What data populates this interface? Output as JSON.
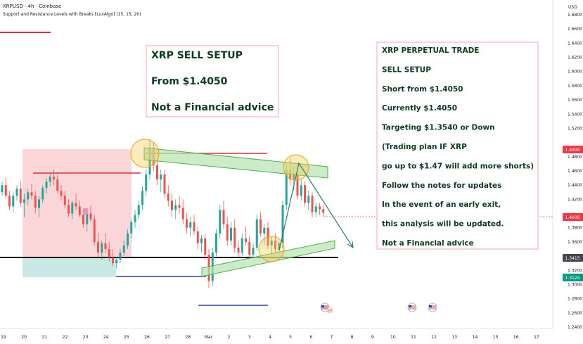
{
  "header": {
    "symbol_line": "XRPUSD · 4h · Coinbase",
    "indicator_line": "Support and Resistance Levels with Breaks [LuxAlgo] (15, 15, 20)"
  },
  "currency_label": "USD",
  "price_axis": {
    "ticks": [
      "1.6800",
      "1.6600",
      "1.6400",
      "1.6200",
      "1.6000",
      "1.5800",
      "1.5600",
      "1.5400",
      "1.5200",
      "1.4800",
      "1.4600",
      "1.4400",
      "1.4200",
      "1.3800",
      "1.3600",
      "1.3200",
      "1.3000",
      "1.2800",
      "1.2600",
      "1.2400"
    ],
    "badges": [
      {
        "label": "1.4998",
        "color": "#f23645"
      },
      {
        "label": "1.4006",
        "color": "#f23645"
      },
      {
        "label": "1.3415",
        "color": "#434651"
      },
      {
        "label": "1.3124",
        "color": "#089981"
      }
    ]
  },
  "time_axis": {
    "ticks": [
      "19",
      "20",
      "21",
      "22",
      "23",
      "24",
      "25",
      "26",
      "27",
      "28",
      "Mar",
      "2",
      "3",
      "4",
      "5",
      "6",
      "7",
      "8",
      "9",
      "10",
      "11",
      "12",
      "13",
      "14",
      "15",
      "16",
      "17"
    ]
  },
  "notes": {
    "left": [
      "XRP SELL SETUP",
      "From $1.4050",
      "Not a Financial advice"
    ],
    "right": [
      "XRP PERPETUAL TRADE",
      "SELL SETUP",
      "Short from $1.4050",
      "Currently $1.4050",
      "Targeting $1.3540 or Down",
      "(Trading plan IF XRP",
      "go up to $1.47 will add more shorts)",
      "Follow the notes for updates",
      "In the event of an early exit,",
      "this analysis will be updated.",
      "Not a Financial advice"
    ]
  },
  "colors": {
    "up": "#26a69a",
    "down": "#ef5350",
    "red_line": "#e03030",
    "support_line": "#000000",
    "blue_line": "#2b3fa8",
    "channel_fill": "#b7e4b0",
    "channel_stroke": "#4caf50",
    "note_border": "#f4a6a6",
    "arrow": "#2e7d6b",
    "circle": "#f5c542"
  },
  "chart_data": {
    "type": "candlestick",
    "symbol": "XRPUSD",
    "timeframe": "4h",
    "exchange": "Coinbase",
    "y_axis": {
      "label": "USD",
      "range": [
        1.23,
        1.7
      ]
    },
    "x_axis": {
      "range_dates": [
        "19 Feb",
        "17 Mar"
      ]
    },
    "last_price": 1.4006,
    "levels": {
      "resistance": 1.4998,
      "support": 1.3415,
      "lower_support": 1.3124
    },
    "ohlc": [
      [
        1.43,
        1.445,
        1.425,
        1.44
      ],
      [
        1.44,
        1.452,
        1.42,
        1.425
      ],
      [
        1.425,
        1.432,
        1.405,
        1.41
      ],
      [
        1.41,
        1.43,
        1.402,
        1.425
      ],
      [
        1.425,
        1.44,
        1.418,
        1.435
      ],
      [
        1.435,
        1.445,
        1.41,
        1.415
      ],
      [
        1.415,
        1.428,
        1.395,
        1.42
      ],
      [
        1.42,
        1.435,
        1.412,
        1.43
      ],
      [
        1.43,
        1.442,
        1.42,
        1.425
      ],
      [
        1.425,
        1.432,
        1.4,
        1.408
      ],
      [
        1.408,
        1.425,
        1.395,
        1.42
      ],
      [
        1.42,
        1.44,
        1.415,
        1.436
      ],
      [
        1.436,
        1.45,
        1.428,
        1.445
      ],
      [
        1.445,
        1.458,
        1.438,
        1.452
      ],
      [
        1.452,
        1.462,
        1.44,
        1.448
      ],
      [
        1.448,
        1.455,
        1.428,
        1.432
      ],
      [
        1.432,
        1.44,
        1.418,
        1.425
      ],
      [
        1.425,
        1.432,
        1.408,
        1.412
      ],
      [
        1.412,
        1.42,
        1.395,
        1.4
      ],
      [
        1.4,
        1.418,
        1.392,
        1.415
      ],
      [
        1.415,
        1.428,
        1.405,
        1.41
      ],
      [
        1.41,
        1.418,
        1.395,
        1.398
      ],
      [
        1.398,
        1.405,
        1.38,
        1.385
      ],
      [
        1.385,
        1.405,
        1.375,
        1.4
      ],
      [
        1.4,
        1.412,
        1.388,
        1.392
      ],
      [
        1.392,
        1.398,
        1.355,
        1.36
      ],
      [
        1.36,
        1.372,
        1.338,
        1.345
      ],
      [
        1.345,
        1.362,
        1.335,
        1.358
      ],
      [
        1.358,
        1.372,
        1.345,
        1.35
      ],
      [
        1.35,
        1.36,
        1.332,
        1.338
      ],
      [
        1.338,
        1.35,
        1.326,
        1.33
      ],
      [
        1.33,
        1.338,
        1.322,
        1.335
      ],
      [
        1.335,
        1.35,
        1.33,
        1.345
      ],
      [
        1.345,
        1.362,
        1.34,
        1.355
      ],
      [
        1.355,
        1.378,
        1.35,
        1.372
      ],
      [
        1.372,
        1.392,
        1.365,
        1.388
      ],
      [
        1.388,
        1.405,
        1.38,
        1.398
      ],
      [
        1.398,
        1.418,
        1.392,
        1.412
      ],
      [
        1.412,
        1.438,
        1.405,
        1.432
      ],
      [
        1.432,
        1.462,
        1.425,
        1.455
      ],
      [
        1.455,
        1.505,
        1.448,
        1.492
      ],
      [
        1.492,
        1.5,
        1.46,
        1.468
      ],
      [
        1.468,
        1.478,
        1.44,
        1.448
      ],
      [
        1.448,
        1.462,
        1.43,
        1.455
      ],
      [
        1.455,
        1.462,
        1.422,
        1.428
      ],
      [
        1.428,
        1.44,
        1.41,
        1.418
      ],
      [
        1.418,
        1.428,
        1.395,
        1.405
      ],
      [
        1.405,
        1.42,
        1.392,
        1.412
      ],
      [
        1.412,
        1.425,
        1.4,
        1.408
      ],
      [
        1.408,
        1.42,
        1.385,
        1.392
      ],
      [
        1.392,
        1.4,
        1.372,
        1.38
      ],
      [
        1.38,
        1.395,
        1.368,
        1.388
      ],
      [
        1.388,
        1.398,
        1.37,
        1.375
      ],
      [
        1.375,
        1.382,
        1.35,
        1.358
      ],
      [
        1.358,
        1.37,
        1.345,
        1.365
      ],
      [
        1.365,
        1.372,
        1.335,
        1.342
      ],
      [
        1.342,
        1.35,
        1.295,
        1.305
      ],
      [
        1.305,
        1.352,
        1.298,
        1.345
      ],
      [
        1.345,
        1.378,
        1.34,
        1.372
      ],
      [
        1.372,
        1.412,
        1.365,
        1.405
      ],
      [
        1.405,
        1.418,
        1.378,
        1.385
      ],
      [
        1.385,
        1.395,
        1.355,
        1.362
      ],
      [
        1.362,
        1.388,
        1.355,
        1.38
      ],
      [
        1.38,
        1.392,
        1.345,
        1.352
      ],
      [
        1.352,
        1.362,
        1.338,
        1.345
      ],
      [
        1.345,
        1.372,
        1.34,
        1.365
      ],
      [
        1.365,
        1.382,
        1.355,
        1.36
      ],
      [
        1.36,
        1.368,
        1.335,
        1.342
      ],
      [
        1.342,
        1.358,
        1.338,
        1.352
      ],
      [
        1.352,
        1.398,
        1.348,
        1.392
      ],
      [
        1.392,
        1.402,
        1.368,
        1.372
      ],
      [
        1.372,
        1.385,
        1.355,
        1.38
      ],
      [
        1.38,
        1.388,
        1.35,
        1.355
      ],
      [
        1.355,
        1.368,
        1.342,
        1.362
      ],
      [
        1.362,
        1.372,
        1.345,
        1.35
      ],
      [
        1.35,
        1.362,
        1.345,
        1.358
      ],
      [
        1.358,
        1.418,
        1.352,
        1.412
      ],
      [
        1.412,
        1.47,
        1.405,
        1.462
      ],
      [
        1.462,
        1.478,
        1.44,
        1.448
      ],
      [
        1.448,
        1.465,
        1.432,
        1.455
      ],
      [
        1.455,
        1.462,
        1.42,
        1.425
      ],
      [
        1.425,
        1.448,
        1.418,
        1.44
      ],
      [
        1.44,
        1.445,
        1.41,
        1.415
      ],
      [
        1.415,
        1.432,
        1.405,
        1.425
      ],
      [
        1.425,
        1.43,
        1.395,
        1.402
      ],
      [
        1.402,
        1.415,
        1.395,
        1.41
      ],
      [
        1.41,
        1.415,
        1.398,
        1.406
      ],
      [
        1.406,
        1.412,
        1.396,
        1.401
      ]
    ]
  }
}
